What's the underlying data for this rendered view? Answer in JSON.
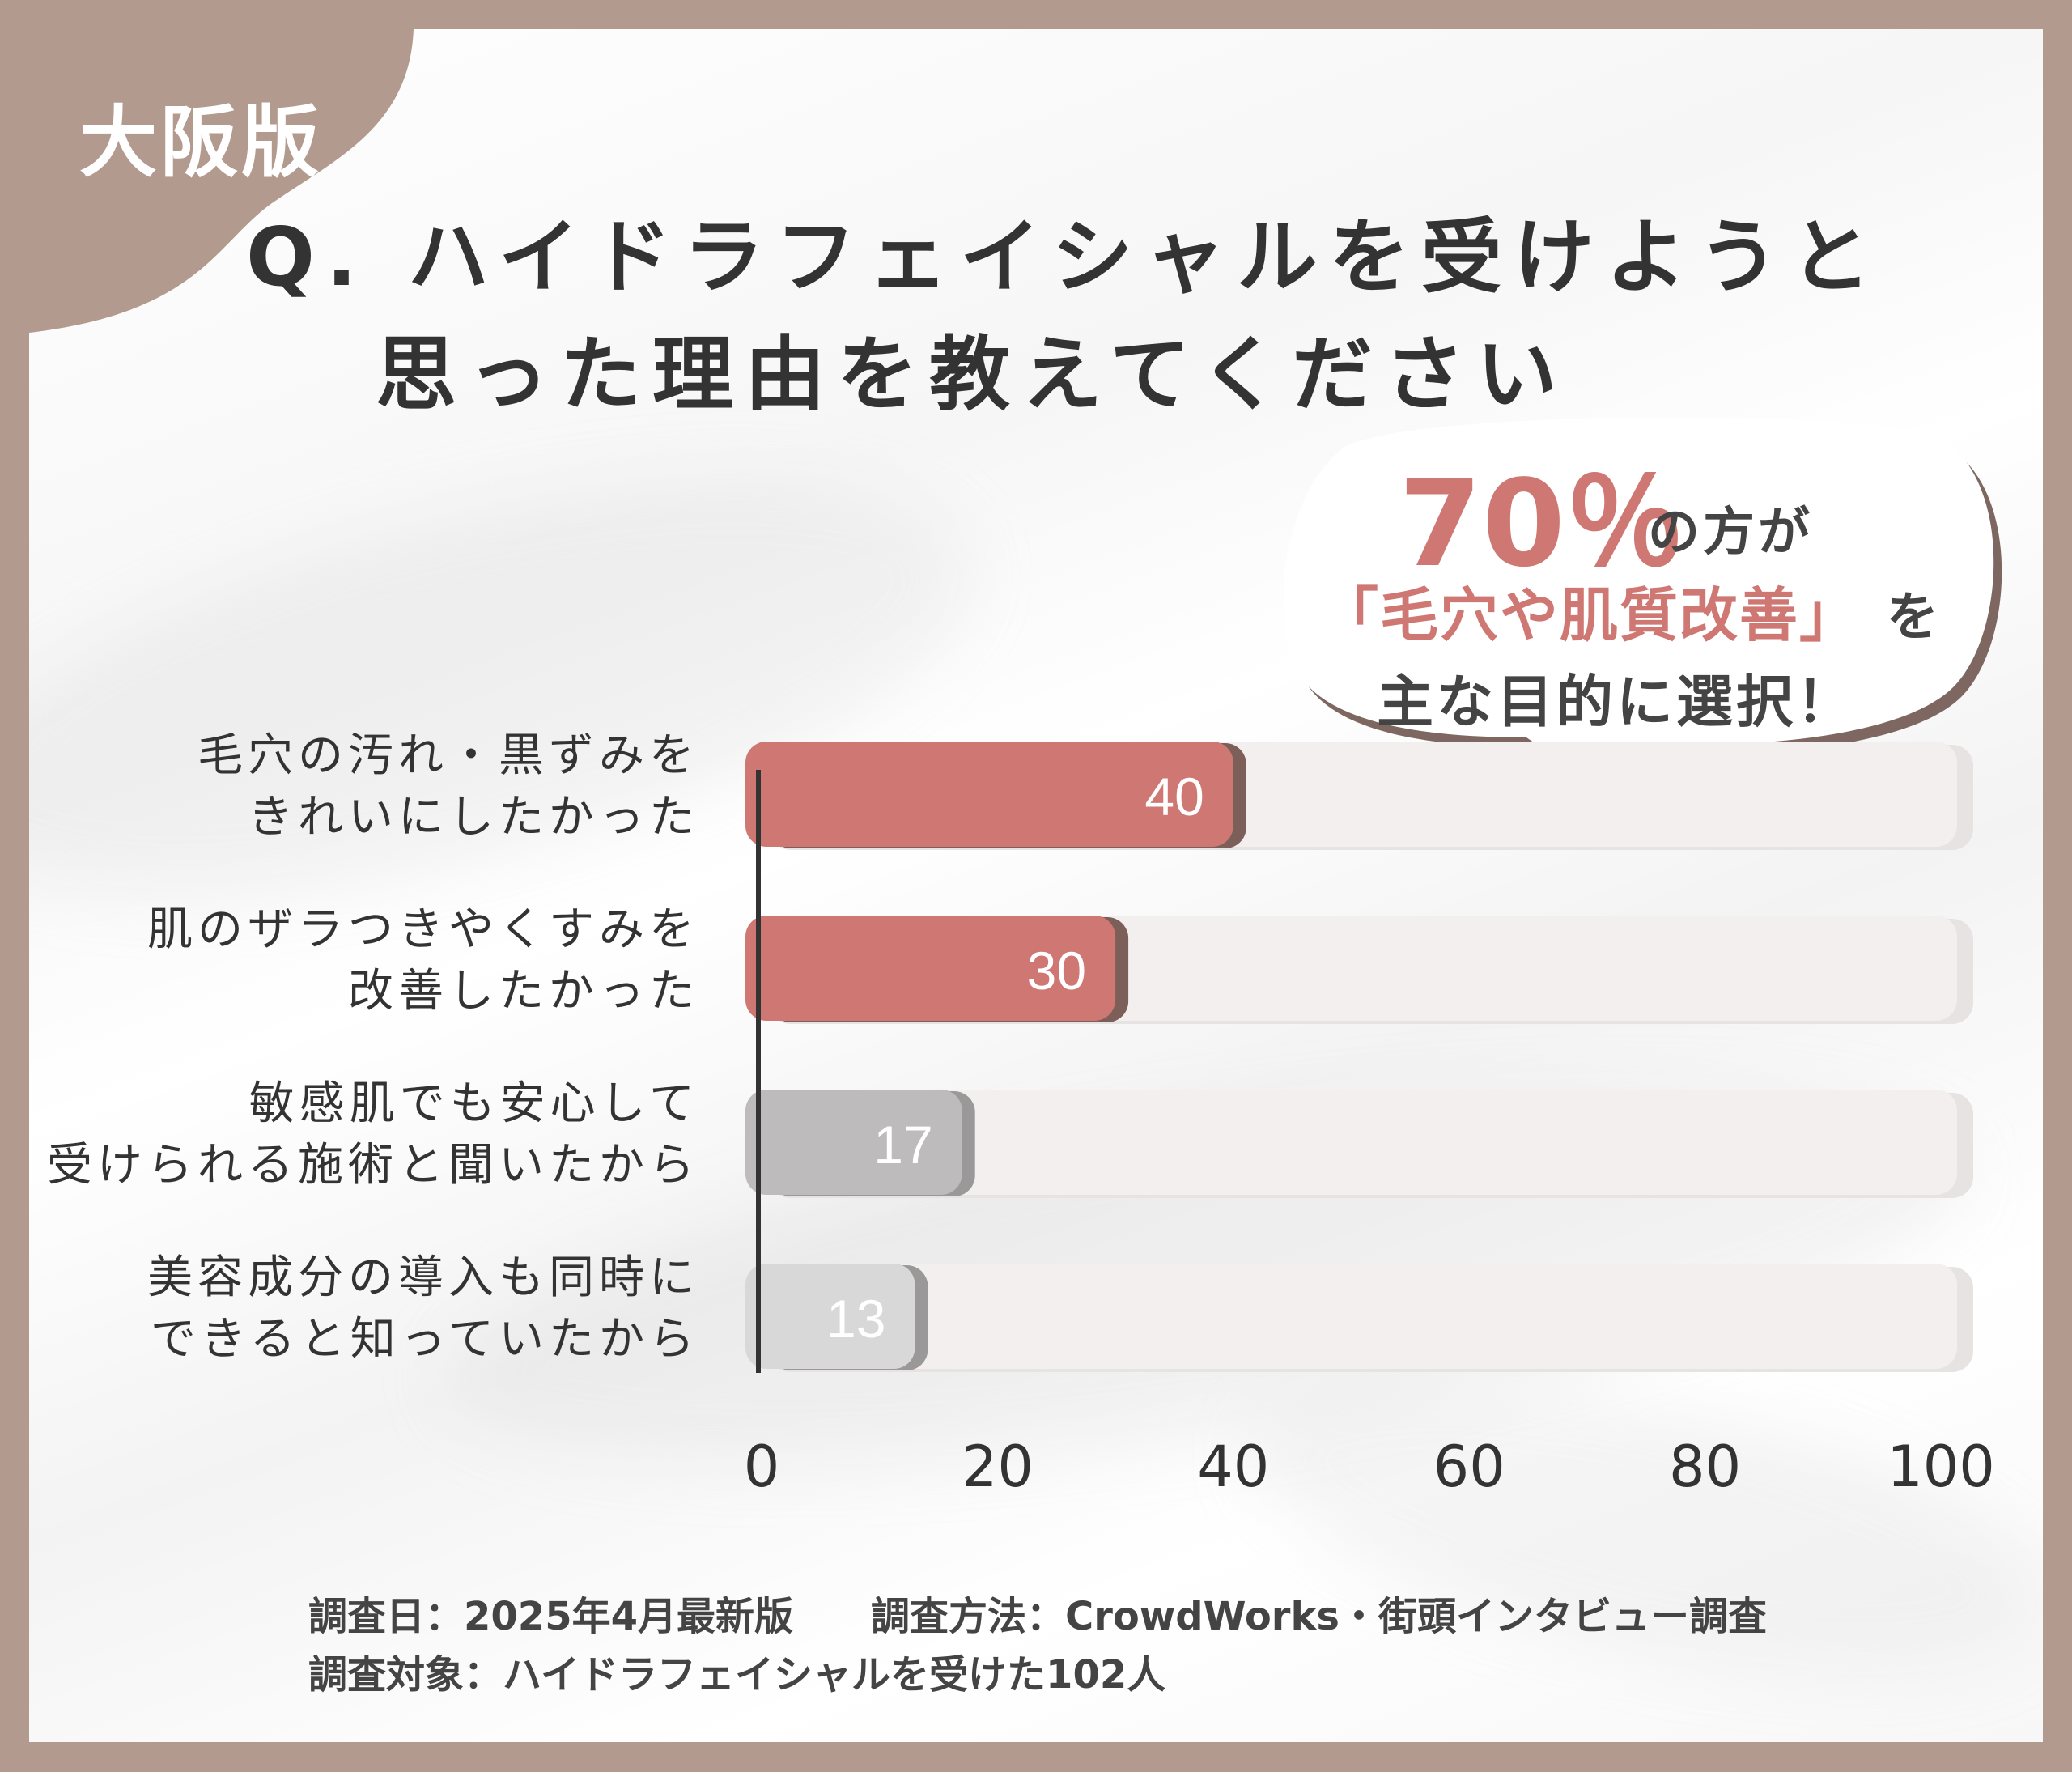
{
  "region_tag": "大阪版",
  "title": {
    "line1": "Q. ハイドラフェイシャルを受けようと",
    "line2": "思った理由を教えてください"
  },
  "callout": {
    "percentage": "70％",
    "line1_rest": "の方が",
    "highlight": "「毛穴や肌質改善」",
    "line2_rest": "を",
    "line3": "主な目的に選択！"
  },
  "chart_data": {
    "type": "bar",
    "orientation": "horizontal",
    "categories": [
      [
        "毛穴の汚れ・黒ずみを",
        "きれいにしたかった"
      ],
      [
        "肌のザラつきやくすみを",
        "改善したかった"
      ],
      [
        "敏感肌でも安心して",
        "受けられる施術と聞いたから"
      ],
      [
        "美容成分の導入も同時に",
        "できると知っていたから"
      ]
    ],
    "values": [
      40,
      30,
      17,
      13
    ],
    "xlim": [
      0,
      100
    ],
    "x_ticks": [
      "0",
      "20",
      "40",
      "60",
      "80",
      "100"
    ],
    "bar_colors": [
      "#cf7773",
      "#cf7773",
      "#bdbbbb",
      "#d9d8d8"
    ],
    "track_color": "#f2efee"
  },
  "footer": {
    "date": "調査日：2025年4月最新版",
    "method": "調査方法：CrowdWorks・街頭インタビュー調査",
    "target": "調査対象：ハイドラフェイシャルを受けた102人"
  }
}
